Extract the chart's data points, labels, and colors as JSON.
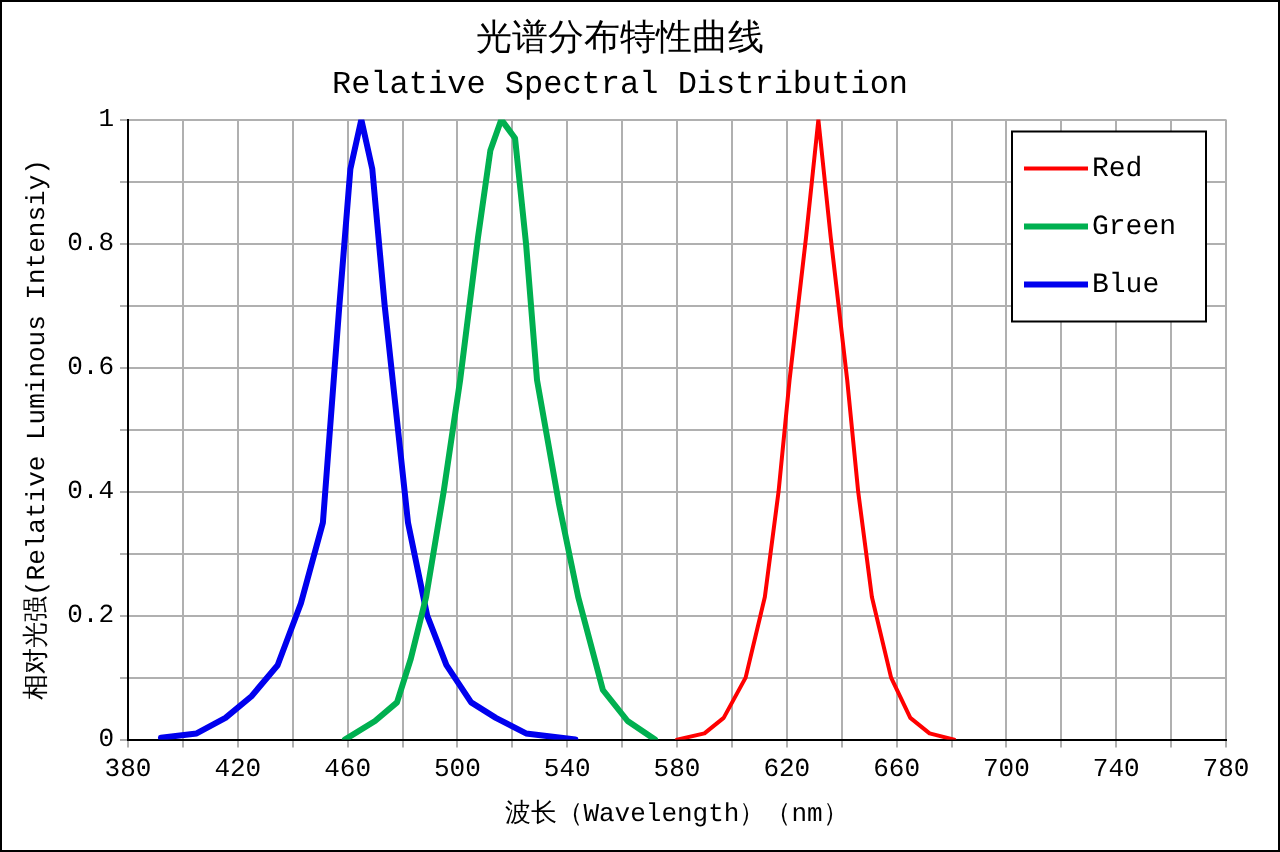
{
  "chart_data": {
    "type": "line",
    "title": "光谱分布特性曲线",
    "subtitle": "Relative Spectral Distribution",
    "xlabel": "波长（Wavelength）（nm）",
    "ylabel": "相对光强(Relative Luminous Intensiy)",
    "xlim": [
      380,
      780
    ],
    "xticks": [
      380,
      {
        "value": 400,
        "label": null
      },
      420,
      {
        "value": 440,
        "label": null
      },
      460,
      {
        "value": 480,
        "label": null
      },
      500,
      {
        "value": 520,
        "label": null
      },
      540,
      {
        "value": 560,
        "label": null
      },
      580,
      {
        "value": 600,
        "label": null
      },
      620,
      {
        "value": 640,
        "label": null
      },
      660,
      {
        "value": 680,
        "label": null
      },
      700,
      {
        "value": 720,
        "label": null
      },
      740,
      {
        "value": 760,
        "label": null
      },
      780
    ],
    "ylim": [
      0,
      1
    ],
    "yticks": [
      0,
      {
        "value": 0.1,
        "label": null
      },
      0.2,
      {
        "value": 0.3,
        "label": null
      },
      0.4,
      {
        "value": 0.5,
        "label": null
      },
      0.6,
      {
        "value": 0.7,
        "label": null
      },
      0.8,
      {
        "value": 0.9,
        "label": null
      },
      1
    ],
    "grid": true,
    "legend": "top right",
    "marker": "none",
    "line_style": "solid",
    "series": [
      {
        "name": "Red",
        "color": "#ff0000",
        "x": [
          580,
          590,
          597,
          605,
          612,
          617,
          621,
          627,
          631.5,
          636,
          642,
          646,
          651,
          658,
          665,
          672,
          681
        ],
        "values": [
          0,
          0.01,
          0.035,
          0.1,
          0.23,
          0.4,
          0.58,
          0.81,
          1,
          0.81,
          0.58,
          0.4,
          0.23,
          0.1,
          0.035,
          0.01,
          0
        ]
      },
      {
        "name": "Green",
        "color": "#00b050",
        "x": [
          459,
          470,
          478,
          483,
          488.6,
          495,
          501,
          507.5,
          512,
          516,
          521,
          525,
          529,
          537,
          544,
          553,
          562,
          572
        ],
        "values": [
          0,
          0.03,
          0.06,
          0.13,
          0.23,
          0.4,
          0.58,
          0.81,
          0.95,
          1,
          0.97,
          0.8,
          0.58,
          0.38,
          0.23,
          0.08,
          0.03,
          0
        ],
        "type": "line"
      },
      {
        "name": "Blue",
        "color": "#0000ee",
        "x": [
          392,
          405,
          415.5,
          425,
          434.5,
          443,
          451,
          457,
          461,
          465,
          469,
          473.5,
          482,
          489,
          496,
          505,
          514,
          525,
          543
        ],
        "values": [
          0.003,
          0.01,
          0.035,
          0.07,
          0.12,
          0.22,
          0.35,
          0.7,
          0.92,
          1,
          0.92,
          0.7,
          0.35,
          0.2,
          0.12,
          0.06,
          0.035,
          0.01,
          0
        ]
      }
    ]
  }
}
